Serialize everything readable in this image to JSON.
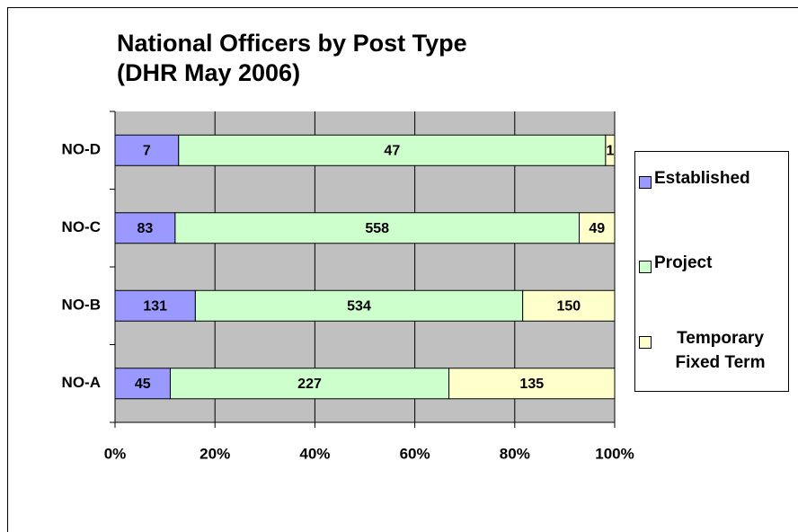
{
  "chart_data": {
    "type": "bar",
    "orientation": "horizontal",
    "stacking": "percent",
    "title": [
      "National Officers by Post Type",
      "(DHR May 2006)"
    ],
    "categories": [
      "NO-D",
      "NO-C",
      "NO-B",
      "NO-A"
    ],
    "series": [
      {
        "name": "Established",
        "color": "#9999ff",
        "values": [
          7,
          83,
          131,
          45
        ]
      },
      {
        "name": "Project",
        "color": "#ccffcc",
        "values": [
          47,
          558,
          534,
          227
        ]
      },
      {
        "name": "Temporary Fixed Term",
        "color": "#ffffcc",
        "values": [
          1,
          49,
          150,
          135
        ]
      }
    ],
    "xlim": [
      0,
      100
    ],
    "xticks": [
      {
        "value": 0,
        "label": "0%"
      },
      {
        "value": 20,
        "label": "20%"
      },
      {
        "value": 40,
        "label": "40%"
      },
      {
        "value": 60,
        "label": "60%"
      },
      {
        "value": 80,
        "label": "80%"
      },
      {
        "value": 100,
        "label": "100%"
      }
    ],
    "grid": true,
    "legend": "right"
  }
}
